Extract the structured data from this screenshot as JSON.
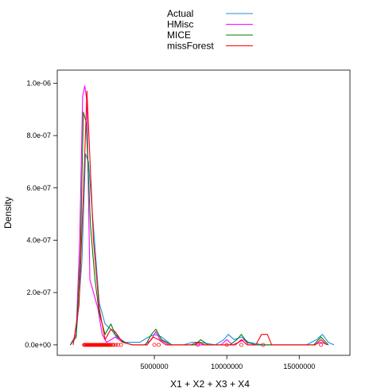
{
  "chart_data": {
    "type": "line",
    "xlabel": "X1 + X2 + X3 + X4",
    "ylabel": "Density",
    "xlim": [
      -1700000,
      18500000
    ],
    "ylim": [
      -4e-08,
      1.05e-06
    ],
    "xticks": [
      {
        "value": 5000000,
        "label": "5000000"
      },
      {
        "value": 10000000,
        "label": "10000000"
      },
      {
        "value": 15000000,
        "label": "15000000"
      }
    ],
    "yticks": [
      {
        "value": 0,
        "label": "0.0e+00"
      },
      {
        "value": 2e-07,
        "label": "2.0e-07"
      },
      {
        "value": 4e-07,
        "label": "4.0e-07"
      },
      {
        "value": 6e-07,
        "label": "6.0e-07"
      },
      {
        "value": 8e-07,
        "label": "8.0e-07"
      },
      {
        "value": 1e-06,
        "label": "1.0e-06"
      }
    ],
    "grid": false,
    "legend_position": "top",
    "series": [
      {
        "name": "Actual",
        "color": "#1f8fe0",
        "points": [
          [
            -800000,
            0
          ],
          [
            -400000,
            3e-08
          ],
          [
            0,
            3.2e-07
          ],
          [
            250000,
            7.3e-07
          ],
          [
            450000,
            7e-07
          ],
          [
            800000,
            4.5e-07
          ],
          [
            1200000,
            1.6e-07
          ],
          [
            1600000,
            8e-08
          ],
          [
            2000000,
            6e-08
          ],
          [
            2400000,
            3e-08
          ],
          [
            3000000,
            1e-08
          ],
          [
            4000000,
            1e-08
          ],
          [
            4600000,
            3e-08
          ],
          [
            5000000,
            4e-08
          ],
          [
            5500000,
            3e-08
          ],
          [
            6200000,
            0
          ],
          [
            7000000,
            0
          ],
          [
            7600000,
            1e-08
          ],
          [
            8200000,
            1e-08
          ],
          [
            9200000,
            0
          ],
          [
            9800000,
            2e-08
          ],
          [
            10100000,
            4e-08
          ],
          [
            10500000,
            2e-08
          ],
          [
            11000000,
            3e-08
          ],
          [
            11500000,
            1e-08
          ],
          [
            12500000,
            0
          ],
          [
            15500000,
            0
          ],
          [
            16200000,
            2e-08
          ],
          [
            16600000,
            4e-08
          ],
          [
            17000000,
            1e-08
          ],
          [
            17400000,
            0
          ]
        ]
      },
      {
        "name": "HMisc",
        "color": "#ff00ff",
        "points": [
          [
            -800000,
            0
          ],
          [
            -400000,
            4e-08
          ],
          [
            -150000,
            4e-07
          ],
          [
            50000,
            9.5e-07
          ],
          [
            200000,
            9.9e-07
          ],
          [
            350000,
            9.3e-07
          ],
          [
            550000,
            2.5e-07
          ],
          [
            800000,
            2e-07
          ],
          [
            1100000,
            1.4e-07
          ],
          [
            1400000,
            4e-08
          ],
          [
            1700000,
            1e-08
          ],
          [
            2000000,
            2e-08
          ],
          [
            2300000,
            3e-08
          ],
          [
            2800000,
            1e-08
          ],
          [
            3500000,
            0
          ],
          [
            4300000,
            0
          ],
          [
            4800000,
            2e-08
          ],
          [
            5100000,
            5e-08
          ],
          [
            5400000,
            2e-08
          ],
          [
            6000000,
            0
          ],
          [
            9600000,
            0
          ],
          [
            10000000,
            2e-08
          ],
          [
            10400000,
            0
          ],
          [
            10800000,
            1e-08
          ],
          [
            11200000,
            2e-08
          ],
          [
            11500000,
            0
          ],
          [
            16000000,
            0
          ],
          [
            16500000,
            1e-08
          ],
          [
            17000000,
            0
          ]
        ]
      },
      {
        "name": "MICE",
        "color": "#008000",
        "points": [
          [
            -800000,
            0
          ],
          [
            -400000,
            3e-08
          ],
          [
            -100000,
            3.5e-07
          ],
          [
            100000,
            8.9e-07
          ],
          [
            300000,
            8.5e-07
          ],
          [
            600000,
            4.5e-07
          ],
          [
            900000,
            2.5e-07
          ],
          [
            1200000,
            1.2e-07
          ],
          [
            1600000,
            4e-08
          ],
          [
            2000000,
            8e-08
          ],
          [
            2300000,
            4e-08
          ],
          [
            2900000,
            1e-08
          ],
          [
            3500000,
            0
          ],
          [
            4400000,
            0
          ],
          [
            4800000,
            4e-08
          ],
          [
            5100000,
            6e-08
          ],
          [
            5500000,
            2e-08
          ],
          [
            6200000,
            0
          ],
          [
            7800000,
            0
          ],
          [
            8200000,
            2e-08
          ],
          [
            8700000,
            0
          ],
          [
            10200000,
            0
          ],
          [
            10700000,
            2e-08
          ],
          [
            11000000,
            4e-08
          ],
          [
            11400000,
            1e-08
          ],
          [
            12000000,
            0
          ],
          [
            16000000,
            0
          ],
          [
            16500000,
            3e-08
          ],
          [
            17000000,
            0
          ]
        ]
      },
      {
        "name": "missForest",
        "color": "#ff0000",
        "points": [
          [
            -600000,
            0
          ],
          [
            -200000,
            1.5e-07
          ],
          [
            150000,
            6.5e-07
          ],
          [
            350000,
            9.7e-07
          ],
          [
            500000,
            7.8e-07
          ],
          [
            800000,
            4e-07
          ],
          [
            1200000,
            1.4e-07
          ],
          [
            1600000,
            2e-08
          ],
          [
            2000000,
            6e-08
          ],
          [
            2300000,
            5e-08
          ],
          [
            2800000,
            1e-08
          ],
          [
            3500000,
            0
          ],
          [
            4500000,
            0
          ],
          [
            4900000,
            3e-08
          ],
          [
            5300000,
            2e-08
          ],
          [
            5800000,
            0
          ],
          [
            7500000,
            0
          ],
          [
            8000000,
            1e-08
          ],
          [
            8500000,
            0
          ],
          [
            10600000,
            0
          ],
          [
            11000000,
            2e-08
          ],
          [
            11400000,
            0
          ],
          [
            12000000,
            0
          ],
          [
            12400000,
            4e-08
          ],
          [
            12800000,
            4e-08
          ],
          [
            13100000,
            0
          ],
          [
            16100000,
            0
          ],
          [
            16500000,
            2e-08
          ],
          [
            16900000,
            0
          ]
        ]
      }
    ],
    "rug": {
      "values": [
        150000,
        200000,
        250000,
        300000,
        350000,
        400000,
        450000,
        500000,
        550000,
        600000,
        650000,
        700000,
        750000,
        800000,
        850000,
        900000,
        950000,
        1000000,
        1050000,
        1100000,
        1150000,
        1200000,
        1250000,
        1300000,
        1350000,
        1400000,
        1450000,
        1500000,
        1550000,
        1600000,
        1650000,
        1700000,
        1750000,
        1800000,
        1850000,
        1900000,
        1950000,
        2000000,
        2100000,
        2200000,
        2350000,
        2500000,
        2700000,
        5000000,
        5300000,
        8000000,
        10000000,
        11000000,
        12500000,
        16500000
      ],
      "color": "#ff0000"
    }
  }
}
